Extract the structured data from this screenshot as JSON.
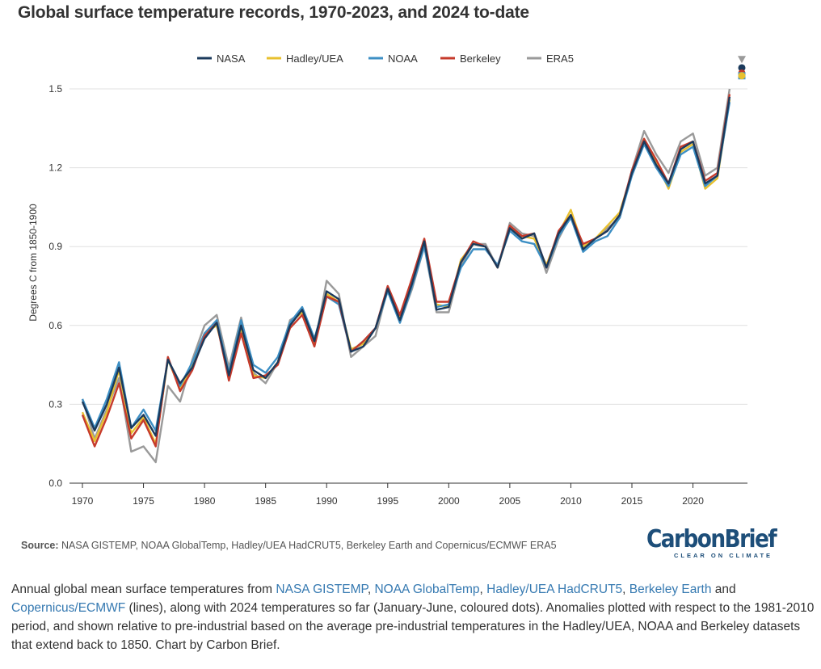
{
  "title": "Global surface temperature records, 1970-2023, and 2024 to-date",
  "source_label": "Source:",
  "source_text": "NASA GISTEMP, NOAA GlobalTemp, Hadley/UEA HadCRUT5, Berkeley Earth and Copernicus/ECMWF ERA5",
  "logo": {
    "main": "CarbonBrief",
    "tagline": "CLEAR ON CLIMATE"
  },
  "caption": {
    "p1": "Annual global mean surface temperatures from ",
    "l1": "NASA GISTEMP",
    "s1": ", ",
    "l2": "NOAA GlobalTemp",
    "s2": ", ",
    "l3": "Hadley/UEA HadCRUT5",
    "s3": ", ",
    "l4": "Berkeley Earth",
    "s4": " and ",
    "l5": "Copernicus/ECMWF",
    "p2": " (lines), along with 2024 temperatures so far (January-June, coloured dots). Anomalies plotted with respect to the 1981-2010 period, and shown relative to pre-industrial based on the average pre-industrial temperatures in the Hadley/UEA, NOAA and Berkeley datasets that extend back to 1850. Chart by Carbon Brief."
  },
  "chart_data": {
    "type": "line",
    "title": "Global surface temperature records, 1970-2023, and 2024 to-date",
    "xlabel": "",
    "ylabel": "Degrees C from 1850-1900",
    "xlim": [
      1970,
      2024
    ],
    "ylim": [
      0.0,
      1.5
    ],
    "xticks": [
      1970,
      1975,
      1980,
      1985,
      1990,
      1995,
      2000,
      2005,
      2010,
      2015,
      2020
    ],
    "yticks": [
      0.0,
      0.3,
      0.6,
      0.9,
      1.2,
      1.5
    ],
    "ytick_labels": [
      "0.0",
      "0.3",
      "0.6",
      "0.9",
      "1.2",
      "1.5"
    ],
    "grid": "horizontal",
    "legend": "top-center",
    "x": [
      1970,
      1971,
      1972,
      1973,
      1974,
      1975,
      1976,
      1977,
      1978,
      1979,
      1980,
      1981,
      1982,
      1983,
      1984,
      1985,
      1986,
      1987,
      1988,
      1989,
      1990,
      1991,
      1992,
      1993,
      1994,
      1995,
      1996,
      1997,
      1998,
      1999,
      2000,
      2001,
      2002,
      2003,
      2004,
      2005,
      2006,
      2007,
      2008,
      2009,
      2010,
      2011,
      2012,
      2013,
      2014,
      2015,
      2016,
      2017,
      2018,
      2019,
      2020,
      2021,
      2022,
      2023
    ],
    "series": [
      {
        "name": "NASA",
        "color": "#1b3a5c",
        "values": [
          0.31,
          0.2,
          0.3,
          0.44,
          0.21,
          0.26,
          0.18,
          0.47,
          0.38,
          0.44,
          0.55,
          0.61,
          0.41,
          0.6,
          0.43,
          0.4,
          0.46,
          0.6,
          0.66,
          0.54,
          0.73,
          0.7,
          0.5,
          0.52,
          0.59,
          0.74,
          0.62,
          0.76,
          0.92,
          0.66,
          0.67,
          0.84,
          0.91,
          0.9,
          0.82,
          0.97,
          0.93,
          0.95,
          0.82,
          0.95,
          1.02,
          0.89,
          0.93,
          0.96,
          1.02,
          1.18,
          1.3,
          1.21,
          1.14,
          1.27,
          1.3,
          1.14,
          1.17,
          1.47
        ]
      },
      {
        "name": "Hadley/UEA",
        "color": "#e8c02e",
        "values": [
          0.27,
          0.16,
          0.27,
          0.43,
          0.19,
          0.25,
          0.15,
          0.47,
          0.36,
          0.45,
          0.57,
          0.6,
          0.42,
          0.59,
          0.41,
          0.4,
          0.46,
          0.61,
          0.65,
          0.53,
          0.72,
          0.69,
          0.51,
          0.53,
          0.59,
          0.74,
          0.63,
          0.77,
          0.92,
          0.68,
          0.67,
          0.85,
          0.91,
          0.9,
          0.82,
          0.97,
          0.94,
          0.93,
          0.83,
          0.95,
          1.04,
          0.9,
          0.93,
          0.98,
          1.03,
          1.18,
          1.31,
          1.22,
          1.12,
          1.26,
          1.29,
          1.12,
          1.16,
          1.46
        ]
      },
      {
        "name": "NOAA",
        "color": "#3d8fc4",
        "values": [
          0.32,
          0.21,
          0.32,
          0.46,
          0.21,
          0.28,
          0.2,
          0.47,
          0.37,
          0.46,
          0.57,
          0.62,
          0.42,
          0.62,
          0.45,
          0.42,
          0.48,
          0.61,
          0.67,
          0.55,
          0.71,
          0.68,
          0.5,
          0.54,
          0.59,
          0.73,
          0.61,
          0.75,
          0.9,
          0.67,
          0.68,
          0.82,
          0.89,
          0.89,
          0.83,
          0.96,
          0.92,
          0.91,
          0.82,
          0.94,
          1.01,
          0.88,
          0.92,
          0.94,
          1.01,
          1.17,
          1.29,
          1.2,
          1.13,
          1.25,
          1.28,
          1.13,
          1.17,
          1.45
        ]
      },
      {
        "name": "Berkeley",
        "color": "#c63a2b",
        "values": [
          0.26,
          0.14,
          0.25,
          0.38,
          0.17,
          0.24,
          0.14,
          0.48,
          0.35,
          0.43,
          0.56,
          0.61,
          0.39,
          0.57,
          0.4,
          0.41,
          0.45,
          0.59,
          0.64,
          0.52,
          0.71,
          0.69,
          0.5,
          0.54,
          0.59,
          0.75,
          0.64,
          0.78,
          0.93,
          0.69,
          0.69,
          0.84,
          0.92,
          0.9,
          0.82,
          0.98,
          0.94,
          0.95,
          0.82,
          0.96,
          1.02,
          0.91,
          0.93,
          0.96,
          1.02,
          1.19,
          1.31,
          1.23,
          1.14,
          1.28,
          1.3,
          1.15,
          1.18,
          1.48
        ]
      },
      {
        "name": "ERA5",
        "color": "#9a9a9a",
        "values": [
          0.32,
          0.17,
          0.28,
          0.4,
          0.12,
          0.14,
          0.08,
          0.37,
          0.31,
          0.47,
          0.6,
          0.64,
          0.44,
          0.63,
          0.42,
          0.38,
          0.46,
          0.62,
          0.65,
          0.52,
          0.77,
          0.72,
          0.48,
          0.52,
          0.56,
          0.74,
          0.61,
          0.74,
          0.9,
          0.65,
          0.65,
          0.83,
          0.91,
          0.91,
          0.82,
          0.99,
          0.95,
          0.94,
          0.8,
          0.93,
          1.02,
          0.89,
          0.93,
          0.97,
          1.01,
          1.19,
          1.34,
          1.25,
          1.18,
          1.3,
          1.33,
          1.17,
          1.2,
          1.5
        ]
      }
    ],
    "points_2024": [
      {
        "name": "ERA5",
        "color": "#9a9a9a",
        "year": 2024,
        "value": 1.61,
        "marker": "triangle-down"
      },
      {
        "name": "NASA",
        "color": "#1b3a5c",
        "year": 2024,
        "value": 1.58,
        "marker": "circle"
      },
      {
        "name": "Berkeley",
        "color": "#c63a2b",
        "year": 2024,
        "value": 1.56,
        "marker": "circle"
      },
      {
        "name": "NOAA",
        "color": "#3d8fc4",
        "year": 2024,
        "value": 1.55,
        "marker": "square"
      },
      {
        "name": "Hadley/UEA",
        "color": "#e8c02e",
        "year": 2024,
        "value": 1.55,
        "marker": "circle"
      }
    ]
  }
}
